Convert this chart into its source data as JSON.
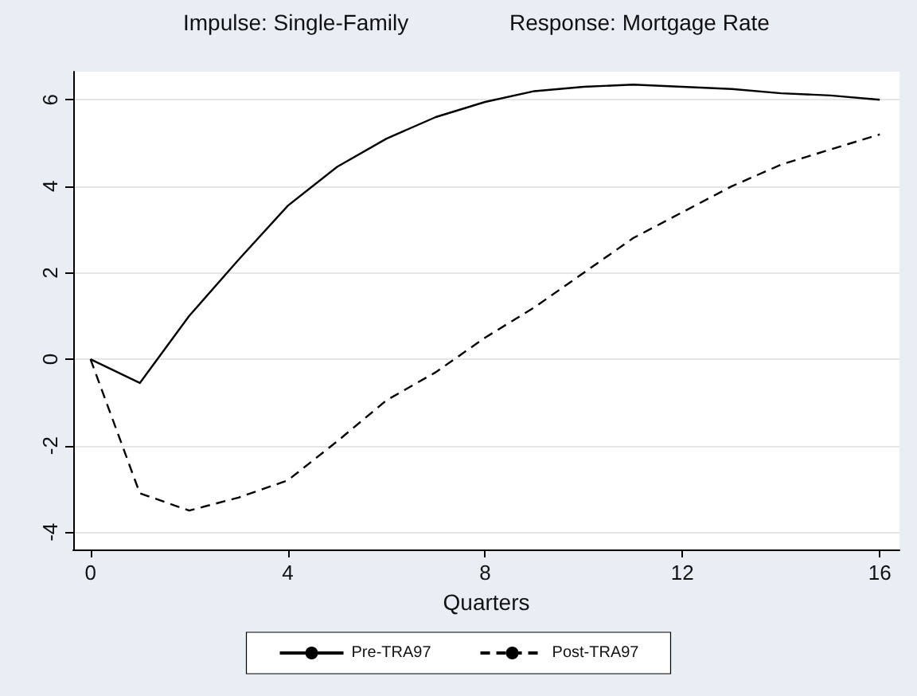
{
  "chart_data": {
    "type": "line",
    "title": "Impulse: Single-Family",
    "subtitle": "Response: Mortgage Rate",
    "xlabel": "Quarters",
    "x": [
      0,
      1,
      2,
      3,
      4,
      5,
      6,
      7,
      8,
      9,
      10,
      11,
      12,
      13,
      14,
      15,
      16
    ],
    "series": [
      {
        "name": "Pre-TRA97",
        "color": "#000000",
        "line_style": "solid",
        "values": [
          0,
          -0.55,
          1.0,
          2.3,
          3.55,
          4.45,
          5.1,
          5.6,
          5.95,
          6.2,
          6.3,
          6.35,
          6.3,
          6.25,
          6.15,
          6.1,
          6.0
        ]
      },
      {
        "name": "Post-TRA97",
        "color": "#000000",
        "line_style": "dashed",
        "values": [
          0,
          -3.1,
          -3.5,
          -3.2,
          -2.8,
          -1.9,
          -0.95,
          -0.3,
          0.5,
          1.2,
          2.0,
          2.8,
          3.4,
          4.0,
          4.5,
          4.85,
          5.2
        ]
      }
    ],
    "xlim": [
      -0.35,
      16.4
    ],
    "xticks": [
      0,
      4,
      8,
      12,
      16
    ],
    "ylim": [
      -4.4,
      6.65
    ],
    "yticks": [
      -4,
      -2,
      0,
      2,
      4,
      6
    ],
    "grid": "y",
    "legend": "bottom",
    "marker": "none"
  }
}
